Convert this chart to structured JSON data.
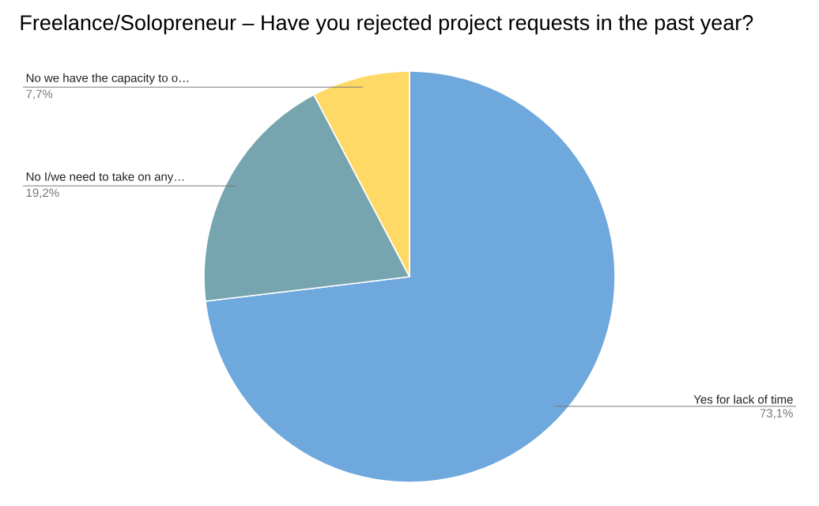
{
  "chart_data": {
    "type": "pie",
    "title": "Freelance/Solopreneur – Have you rejected project requests in the past year?",
    "categories": [
      "Yes for lack of time",
      "No I/we need to take on any…",
      "No we have the capacity to o…"
    ],
    "values": [
      73.1,
      19.2,
      7.7
    ],
    "value_labels": [
      "73,1%",
      "19,2%",
      "7,7%"
    ],
    "colors": [
      "#6fa8dc",
      "#76a5af",
      "#ffd966"
    ]
  }
}
